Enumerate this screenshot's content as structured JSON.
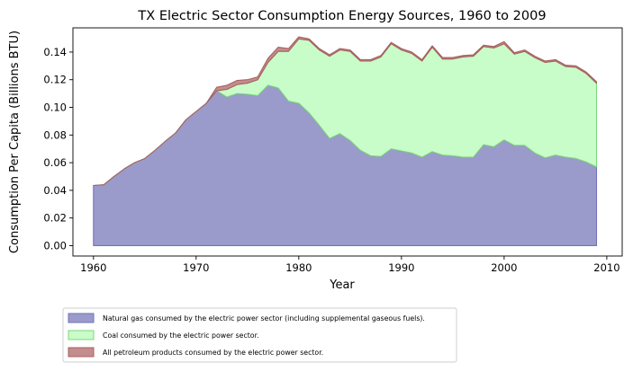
{
  "chart_data": {
    "type": "area",
    "stacked": true,
    "title": "TX Electric Sector Consumption Energy Sources, 1960 to 2009",
    "xlabel": "Year",
    "ylabel": "Consumption Per Capita (Billions BTU)",
    "xlim": [
      1958,
      2011.5
    ],
    "ylim": [
      -0.0075,
      0.1575
    ],
    "xticks": [
      1960,
      1970,
      1980,
      1990,
      2000,
      2010
    ],
    "yticks": [
      "0.00",
      "0.02",
      "0.04",
      "0.06",
      "0.08",
      "0.10",
      "0.12",
      "0.14"
    ],
    "grid": false,
    "legend_placement": "below-left",
    "x": [
      1960,
      1961,
      1962,
      1963,
      1964,
      1965,
      1966,
      1967,
      1968,
      1969,
      1970,
      1971,
      1972,
      1973,
      1974,
      1975,
      1976,
      1977,
      1978,
      1979,
      1980,
      1981,
      1982,
      1983,
      1984,
      1985,
      1986,
      1987,
      1988,
      1989,
      1990,
      1991,
      1992,
      1993,
      1994,
      1995,
      1996,
      1997,
      1998,
      1999,
      2000,
      2001,
      2002,
      2003,
      2004,
      2005,
      2006,
      2007,
      2008,
      2009
    ],
    "series": [
      {
        "name": "Natural gas consumed by the electric power sector (including supplemental gaseous fuels).",
        "color": "#9a9bcb",
        "edge": "#7272b8",
        "values": [
          0.0435,
          0.044,
          0.05,
          0.0555,
          0.06,
          0.063,
          0.069,
          0.0755,
          0.0815,
          0.091,
          0.097,
          0.103,
          0.112,
          0.1075,
          0.11,
          0.1095,
          0.1085,
          0.116,
          0.114,
          0.1045,
          0.103,
          0.096,
          0.087,
          0.0775,
          0.081,
          0.076,
          0.069,
          0.065,
          0.0645,
          0.07,
          0.0685,
          0.067,
          0.064,
          0.068,
          0.0655,
          0.065,
          0.064,
          0.064,
          0.073,
          0.0715,
          0.0765,
          0.0725,
          0.0725,
          0.067,
          0.0635,
          0.0655,
          0.064,
          0.063,
          0.0605,
          0.057
        ]
      },
      {
        "name": "Coal consumed by the electric power sector.",
        "color": "#c8fcc8",
        "edge": "#7fd67f",
        "values": [
          0,
          0,
          0,
          0,
          0,
          0,
          0,
          0,
          0,
          0,
          0,
          0,
          0,
          0.0055,
          0.0065,
          0.008,
          0.0115,
          0.0165,
          0.0265,
          0.036,
          0.0465,
          0.0525,
          0.0545,
          0.0595,
          0.0605,
          0.0645,
          0.0645,
          0.0685,
          0.072,
          0.076,
          0.073,
          0.072,
          0.0695,
          0.0755,
          0.0695,
          0.07,
          0.0725,
          0.073,
          0.071,
          0.0715,
          0.0695,
          0.066,
          0.068,
          0.069,
          0.069,
          0.068,
          0.0655,
          0.066,
          0.064,
          0.0605
        ]
      },
      {
        "name": "All petroleum products consumed by the electric power sector.",
        "color": "#c48c8c",
        "edge": "#a86060",
        "values": [
          0,
          0,
          0,
          0,
          0,
          0,
          0,
          0,
          0,
          0,
          0,
          0,
          0.0025,
          0.003,
          0.003,
          0.0025,
          0.002,
          0.003,
          0.003,
          0.002,
          0.0015,
          0.001,
          0.001,
          0.001,
          0.001,
          0.001,
          0.001,
          0.001,
          0.001,
          0.001,
          0.001,
          0.001,
          0.001,
          0.001,
          0.001,
          0.001,
          0.001,
          0.001,
          0.001,
          0.001,
          0.0015,
          0.001,
          0.001,
          0.001,
          0.001,
          0.001,
          0.001,
          0.001,
          0.001,
          0.001
        ]
      }
    ]
  }
}
